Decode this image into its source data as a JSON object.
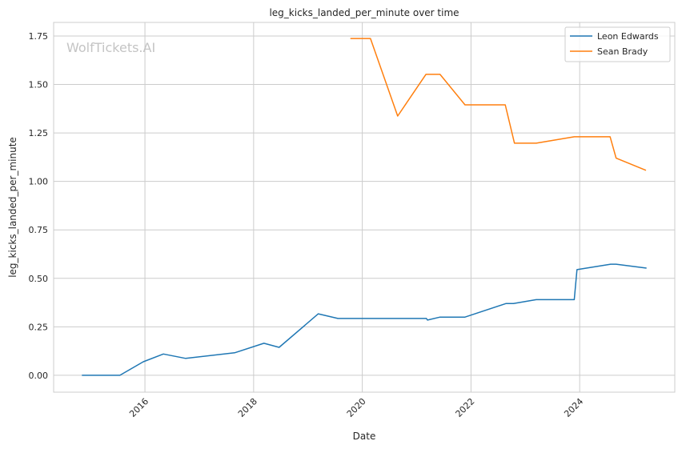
{
  "chart_data": {
    "type": "line",
    "title": "leg_kicks_landed_per_minute over time",
    "xlabel": "Date",
    "ylabel": "leg_kicks_landed_per_minute",
    "xlim": [
      2014.32,
      2025.75
    ],
    "ylim": [
      -0.087,
      1.82
    ],
    "xticks": [
      2016,
      2018,
      2020,
      2022,
      2024
    ],
    "xtick_labels": [
      "2016",
      "2018",
      "2020",
      "2022",
      "2024"
    ],
    "yticks": [
      0,
      0.25,
      0.5,
      0.75,
      1.0,
      1.25,
      1.5,
      1.75
    ],
    "ytick_labels": [
      "0.00",
      "0.25",
      "0.50",
      "0.75",
      "1.00",
      "1.25",
      "1.50",
      "1.75"
    ],
    "grid": true,
    "legend_position": "top-right",
    "watermark": "WolfTickets.AI",
    "series": [
      {
        "name": "Leon Edwards",
        "color": "#1f77b4",
        "x": [
          2014.84,
          2015.54,
          2015.97,
          2016.34,
          2016.75,
          2017.65,
          2018.19,
          2018.47,
          2019.19,
          2019.55,
          2021.18,
          2021.2,
          2021.43,
          2021.89,
          2022.64,
          2022.78,
          2023.2,
          2023.9,
          2023.95,
          2024.57,
          2024.67,
          2025.23
        ],
        "y": [
          0,
          0,
          0.07,
          0.11,
          0.087,
          0.116,
          0.165,
          0.144,
          0.317,
          0.293,
          0.293,
          0.285,
          0.3,
          0.3,
          0.37,
          0.37,
          0.39,
          0.39,
          0.545,
          0.573,
          0.573,
          0.553
        ]
      },
      {
        "name": "Sean Brady",
        "color": "#ff7f0e",
        "x": [
          2019.78,
          2020.15,
          2020.65,
          2021.17,
          2021.43,
          2021.89,
          2022.63,
          2022.8,
          2023.2,
          2023.9,
          2024.56,
          2024.67,
          2025.22
        ],
        "y": [
          1.737,
          1.737,
          1.337,
          1.552,
          1.552,
          1.395,
          1.395,
          1.197,
          1.197,
          1.23,
          1.23,
          1.12,
          1.057
        ]
      }
    ]
  }
}
